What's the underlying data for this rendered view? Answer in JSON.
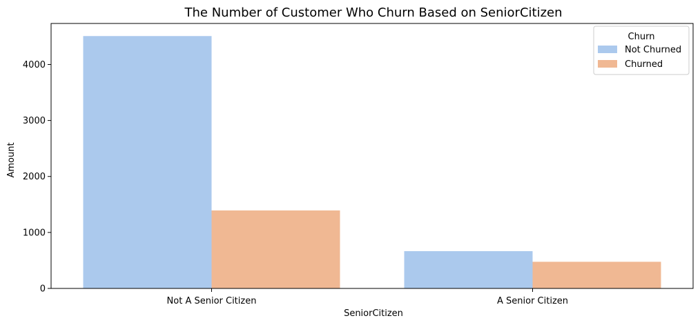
{
  "chart_data": {
    "type": "bar",
    "title": "The Number of Customer Who Churn Based on SeniorCitizen",
    "xlabel": "SeniorCitizen",
    "ylabel": "Amount",
    "categories": [
      "Not A Senior Citizen",
      "A Senior Citizen"
    ],
    "series": [
      {
        "name": "Not Churned",
        "values": [
          4508,
          666
        ],
        "color": "#abc9ed"
      },
      {
        "name": "Churned",
        "values": [
          1393,
          476
        ],
        "color": "#f0b893"
      }
    ],
    "ylim": [
      0,
      4733
    ],
    "yticks": [
      0,
      1000,
      2000,
      3000,
      4000
    ],
    "legend": {
      "title": "Churn",
      "placement": "top-right"
    },
    "grid": false
  }
}
